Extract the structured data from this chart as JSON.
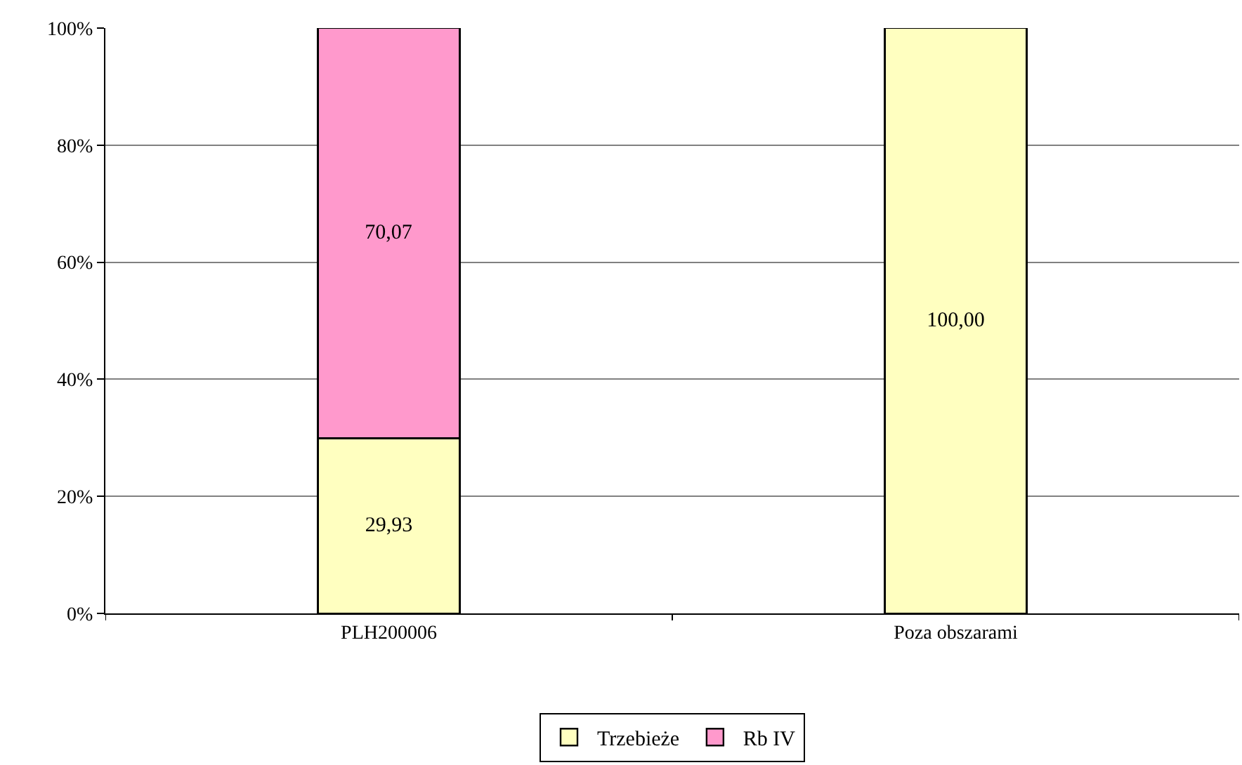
{
  "chart_data": {
    "type": "bar",
    "stacked": true,
    "categories": [
      "PLH200006",
      "Poza obszarami"
    ],
    "series": [
      {
        "name": "Trzebieże",
        "color": "#ffffc0",
        "values": [
          29.93,
          100
        ],
        "value_labels": [
          "29,93",
          "100,00"
        ]
      },
      {
        "name": "Rb IV",
        "color": "#ff99cc",
        "values": [
          70.07,
          null
        ],
        "value_labels": [
          "70,07",
          null
        ]
      }
    ],
    "ylim": [
      0,
      100
    ],
    "yticks": [
      {
        "value": 0,
        "label": "0%"
      },
      {
        "value": 20,
        "label": "20%"
      },
      {
        "value": 40,
        "label": "40%"
      },
      {
        "value": 60,
        "label": "60%"
      },
      {
        "value": 80,
        "label": "80%"
      },
      {
        "value": 100,
        "label": "100%"
      }
    ],
    "grid": "y",
    "legend": "bottom"
  }
}
